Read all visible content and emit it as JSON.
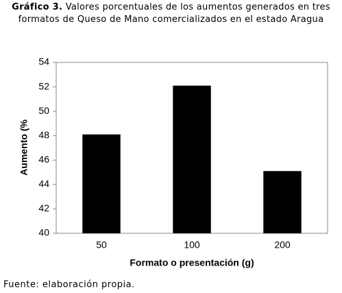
{
  "chart_data": {
    "type": "bar",
    "figure_label": "Gráfico 3.",
    "title": "Valores porcentuales de los aumentos generados en tres formatos de Queso de Mano comercializados en el estado Aragua",
    "categories": [
      "50",
      "100",
      "200"
    ],
    "values": [
      48.1,
      52.1,
      45.1
    ],
    "color": "#000000",
    "ylim": [
      40,
      54
    ],
    "yticks": [
      40,
      42,
      44,
      46,
      48,
      50,
      52,
      54
    ],
    "ylabel": "Aumento (%",
    "xlabel": "Formato o presentación (g)",
    "grid": false,
    "source": "Fuente: elaboración propia."
  }
}
